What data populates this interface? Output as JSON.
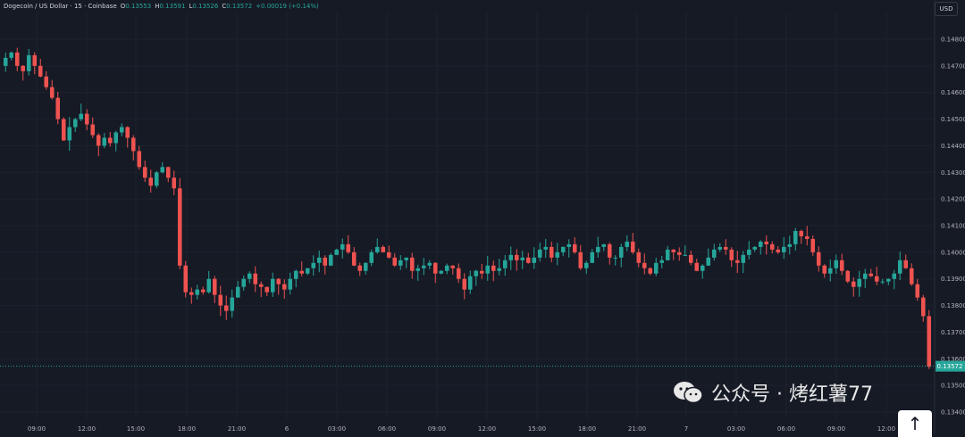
{
  "header": {
    "symbol": "Dogecoin / US Dollar · 15 · Coinbase",
    "open_label": "O",
    "open": "0.13553",
    "high_label": "H",
    "high": "0.13591",
    "low_label": "L",
    "low": "0.13526",
    "close_label": "C",
    "close": "0.13572",
    "change": "+0.00019 (+0.14%)",
    "currency": "USD"
  },
  "colors": {
    "background": "#161a25",
    "up": "#26a69a",
    "down": "#ef5350",
    "text": "#b2b5be",
    "grid": "#1e222d"
  },
  "last_price_label": "0.13572",
  "watermark": {
    "text": "公众号 · 烤红薯77",
    "icon": "wechat-icon"
  },
  "scroll_button": {
    "icon": "arrow-up-icon",
    "label": "↑"
  },
  "chart_data": {
    "type": "candlestick",
    "title": "Dogecoin / US Dollar · 15 · Coinbase",
    "y_ticks": [
      "0.14800",
      "0.14700",
      "0.14600",
      "0.14500",
      "0.14400",
      "0.14300",
      "0.14200",
      "0.14100",
      "0.14000",
      "0.13900",
      "0.13800",
      "0.13700",
      "0.13600",
      "0.13500",
      "0.13400"
    ],
    "ylim": [
      0.1336,
      0.1484
    ],
    "x_ticks": [
      "09:00",
      "12:00",
      "15:00",
      "18:00",
      "21:00",
      "6",
      "03:00",
      "06:00",
      "09:00",
      "12:00",
      "15:00",
      "18:00",
      "21:00",
      "7",
      "03:00",
      "06:00",
      "09:00",
      "12:00"
    ],
    "last_price": 0.13572,
    "series": [
      {
        "name": "DOGE/USD",
        "close_path": [
          0.1473,
          0.1475,
          0.147,
          0.1468,
          0.1474,
          0.147,
          0.1466,
          0.1462,
          0.1458,
          0.145,
          0.1442,
          0.1447,
          0.145,
          0.1452,
          0.1448,
          0.1444,
          0.144,
          0.1443,
          0.1441,
          0.1445,
          0.1447,
          0.1443,
          0.1438,
          0.1432,
          0.1428,
          0.1425,
          0.143,
          0.1432,
          0.1428,
          0.1424,
          0.1395,
          0.1385,
          0.1384,
          0.1386,
          0.1385,
          0.139,
          0.1384,
          0.138,
          0.1378,
          0.1383,
          0.1387,
          0.139,
          0.1392,
          0.1388,
          0.1387,
          0.1385,
          0.139,
          0.1388,
          0.1386,
          0.139,
          0.1393,
          0.1392,
          0.1394,
          0.1396,
          0.1398,
          0.1395,
          0.1399,
          0.1401,
          0.1403,
          0.14,
          0.1395,
          0.1393,
          0.1396,
          0.14,
          0.1402,
          0.14,
          0.1398,
          0.1395,
          0.1397,
          0.1398,
          0.1393,
          0.1394,
          0.1395,
          0.1396,
          0.1392,
          0.1393,
          0.1395,
          0.1394,
          0.139,
          0.1386,
          0.1391,
          0.1393,
          0.1392,
          0.1395,
          0.1393,
          0.1394,
          0.1397,
          0.1399,
          0.1397,
          0.1398,
          0.1396,
          0.1398,
          0.1401,
          0.1402,
          0.1398,
          0.14,
          0.1402,
          0.1403,
          0.14,
          0.1394,
          0.1396,
          0.14,
          0.1402,
          0.1403,
          0.1398,
          0.1398,
          0.1402,
          0.1404,
          0.14,
          0.1396,
          0.1394,
          0.1392,
          0.1396,
          0.1397,
          0.1401,
          0.14,
          0.1399,
          0.1399,
          0.1396,
          0.1393,
          0.1395,
          0.1398,
          0.1401,
          0.1402,
          0.1401,
          0.1397,
          0.1396,
          0.1399,
          0.1401,
          0.1402,
          0.1404,
          0.1403,
          0.1401,
          0.14,
          0.1402,
          0.1403,
          0.1408,
          0.1406,
          0.1405,
          0.14,
          0.1395,
          0.1392,
          0.1394,
          0.1397,
          0.1393,
          0.1389,
          0.1387,
          0.139,
          0.1392,
          0.1391,
          0.1389,
          0.1389,
          0.139,
          0.1392,
          0.1397,
          0.1394,
          0.1388,
          0.1383,
          0.1376,
          0.1357
        ]
      }
    ]
  }
}
